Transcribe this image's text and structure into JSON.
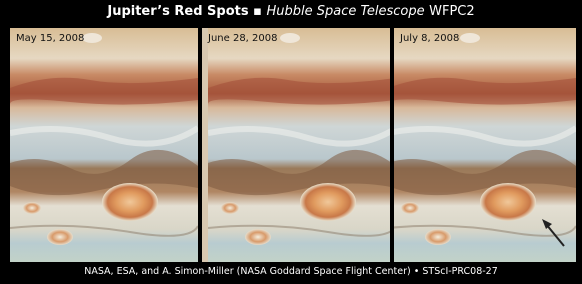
{
  "header": {
    "title": "Jupiter’s Red Spots",
    "separator": "▪",
    "instrument_italic": "Hubble Space Telescope",
    "instrument": "WFPC2"
  },
  "panels": [
    {
      "label": "May 15, 2008"
    },
    {
      "label": "June 28, 2008"
    },
    {
      "label": "July 8, 2008"
    }
  ],
  "credit": "NASA, ESA, and A. Simon-Miller (NASA Goddard Space Flight Center) • STScI-PRC08-27"
}
